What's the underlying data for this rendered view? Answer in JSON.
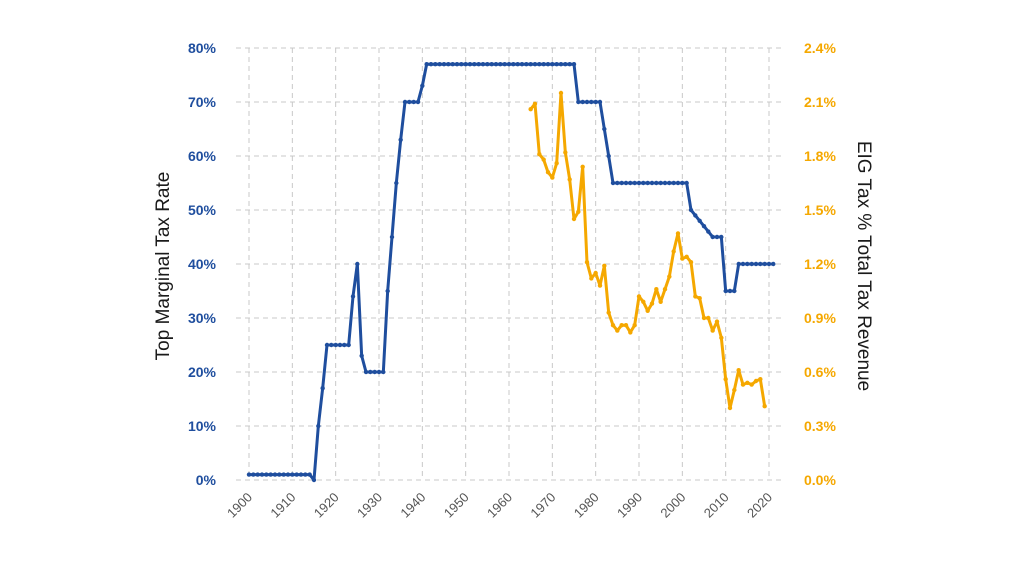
{
  "chart_data": {
    "type": "line",
    "title": "",
    "xlabel": "",
    "ylabel": "Top Marginal Tax Rate",
    "y2label": "EIG Tax % Total Tax Revenue",
    "x_ticks": [
      "1900",
      "1910",
      "1920",
      "1930",
      "1940",
      "1950",
      "1960",
      "1970",
      "1980",
      "1990",
      "2000",
      "2010",
      "2020"
    ],
    "xlim": [
      1897,
      2023
    ],
    "ylim": [
      0,
      80
    ],
    "y2lim": [
      0,
      2.4
    ],
    "y_ticks": [
      "0%",
      "10%",
      "20%",
      "30%",
      "40%",
      "50%",
      "60%",
      "70%",
      "80%"
    ],
    "y2_ticks": [
      "0.0%",
      "0.3%",
      "0.6%",
      "0.9%",
      "1.2%",
      "1.5%",
      "1.8%",
      "2.1%",
      "2.4%"
    ],
    "grid": true,
    "colors": {
      "rate": "#1f4e9e",
      "eig": "#f5a800"
    },
    "series": [
      {
        "axis": "left",
        "points": [
          [
            1900,
            1
          ],
          [
            1901,
            1
          ],
          [
            1902,
            1
          ],
          [
            1903,
            1
          ],
          [
            1904,
            1
          ],
          [
            1905,
            1
          ],
          [
            1906,
            1
          ],
          [
            1907,
            1
          ],
          [
            1908,
            1
          ],
          [
            1909,
            1
          ],
          [
            1910,
            1
          ],
          [
            1911,
            1
          ],
          [
            1912,
            1
          ],
          [
            1913,
            1
          ],
          [
            1914,
            1
          ],
          [
            1915,
            0
          ],
          [
            1916,
            10
          ],
          [
            1917,
            17
          ],
          [
            1918,
            25
          ],
          [
            1919,
            25
          ],
          [
            1920,
            25
          ],
          [
            1921,
            25
          ],
          [
            1922,
            25
          ],
          [
            1923,
            25
          ],
          [
            1924,
            34
          ],
          [
            1925,
            40
          ],
          [
            1926,
            23
          ],
          [
            1927,
            20
          ],
          [
            1928,
            20
          ],
          [
            1929,
            20
          ],
          [
            1930,
            20
          ],
          [
            1931,
            20
          ],
          [
            1932,
            35
          ],
          [
            1933,
            45
          ],
          [
            1934,
            55
          ],
          [
            1935,
            63
          ],
          [
            1936,
            70
          ],
          [
            1937,
            70
          ],
          [
            1938,
            70
          ],
          [
            1939,
            70
          ],
          [
            1940,
            73
          ],
          [
            1941,
            77
          ],
          [
            1942,
            77
          ],
          [
            1943,
            77
          ],
          [
            1944,
            77
          ],
          [
            1945,
            77
          ],
          [
            1946,
            77
          ],
          [
            1947,
            77
          ],
          [
            1948,
            77
          ],
          [
            1949,
            77
          ],
          [
            1950,
            77
          ],
          [
            1951,
            77
          ],
          [
            1952,
            77
          ],
          [
            1953,
            77
          ],
          [
            1954,
            77
          ],
          [
            1955,
            77
          ],
          [
            1956,
            77
          ],
          [
            1957,
            77
          ],
          [
            1958,
            77
          ],
          [
            1959,
            77
          ],
          [
            1960,
            77
          ],
          [
            1961,
            77
          ],
          [
            1962,
            77
          ],
          [
            1963,
            77
          ],
          [
            1964,
            77
          ],
          [
            1965,
            77
          ],
          [
            1966,
            77
          ],
          [
            1967,
            77
          ],
          [
            1968,
            77
          ],
          [
            1969,
            77
          ],
          [
            1970,
            77
          ],
          [
            1971,
            77
          ],
          [
            1972,
            77
          ],
          [
            1973,
            77
          ],
          [
            1974,
            77
          ],
          [
            1975,
            77
          ],
          [
            1976,
            70
          ],
          [
            1977,
            70
          ],
          [
            1978,
            70
          ],
          [
            1979,
            70
          ],
          [
            1980,
            70
          ],
          [
            1981,
            70
          ],
          [
            1982,
            65
          ],
          [
            1983,
            60
          ],
          [
            1984,
            55
          ],
          [
            1985,
            55
          ],
          [
            1986,
            55
          ],
          [
            1987,
            55
          ],
          [
            1988,
            55
          ],
          [
            1989,
            55
          ],
          [
            1990,
            55
          ],
          [
            1991,
            55
          ],
          [
            1992,
            55
          ],
          [
            1993,
            55
          ],
          [
            1994,
            55
          ],
          [
            1995,
            55
          ],
          [
            1996,
            55
          ],
          [
            1997,
            55
          ],
          [
            1998,
            55
          ],
          [
            1999,
            55
          ],
          [
            2000,
            55
          ],
          [
            2001,
            55
          ],
          [
            2002,
            50
          ],
          [
            2003,
            49
          ],
          [
            2004,
            48
          ],
          [
            2005,
            47
          ],
          [
            2006,
            46
          ],
          [
            2007,
            45
          ],
          [
            2008,
            45
          ],
          [
            2009,
            45
          ],
          [
            2010,
            35
          ],
          [
            2011,
            35
          ],
          [
            2012,
            35
          ],
          [
            2013,
            40
          ],
          [
            2014,
            40
          ],
          [
            2015,
            40
          ],
          [
            2016,
            40
          ],
          [
            2017,
            40
          ],
          [
            2018,
            40
          ],
          [
            2019,
            40
          ],
          [
            2020,
            40
          ],
          [
            2021,
            40
          ]
        ]
      },
      {
        "axis": "right",
        "points": [
          [
            1965,
            2.06
          ],
          [
            1966,
            2.09
          ],
          [
            1967,
            1.81
          ],
          [
            1968,
            1.78
          ],
          [
            1969,
            1.71
          ],
          [
            1970,
            1.68
          ],
          [
            1971,
            1.76
          ],
          [
            1972,
            2.15
          ],
          [
            1973,
            1.82
          ],
          [
            1974,
            1.67
          ],
          [
            1975,
            1.45
          ],
          [
            1976,
            1.49
          ],
          [
            1977,
            1.74
          ],
          [
            1978,
            1.21
          ],
          [
            1979,
            1.12
          ],
          [
            1980,
            1.15
          ],
          [
            1981,
            1.08
          ],
          [
            1982,
            1.19
          ],
          [
            1983,
            0.93
          ],
          [
            1984,
            0.86
          ],
          [
            1985,
            0.83
          ],
          [
            1986,
            0.86
          ],
          [
            1987,
            0.86
          ],
          [
            1988,
            0.82
          ],
          [
            1989,
            0.86
          ],
          [
            1990,
            1.02
          ],
          [
            1991,
            0.99
          ],
          [
            1992,
            0.94
          ],
          [
            1993,
            0.98
          ],
          [
            1994,
            1.06
          ],
          [
            1995,
            0.99
          ],
          [
            1996,
            1.06
          ],
          [
            1997,
            1.13
          ],
          [
            1998,
            1.27
          ],
          [
            1999,
            1.37
          ],
          [
            2000,
            1.23
          ],
          [
            2001,
            1.24
          ],
          [
            2002,
            1.21
          ],
          [
            2003,
            1.02
          ],
          [
            2004,
            1.01
          ],
          [
            2005,
            0.9
          ],
          [
            2006,
            0.9
          ],
          [
            2007,
            0.83
          ],
          [
            2008,
            0.88
          ],
          [
            2009,
            0.79
          ],
          [
            2010,
            0.56
          ],
          [
            2011,
            0.4
          ],
          [
            2012,
            0.5
          ],
          [
            2013,
            0.61
          ],
          [
            2014,
            0.53
          ],
          [
            2015,
            0.54
          ],
          [
            2016,
            0.53
          ],
          [
            2017,
            0.55
          ],
          [
            2018,
            0.56
          ],
          [
            2019,
            0.41
          ]
        ]
      }
    ]
  }
}
